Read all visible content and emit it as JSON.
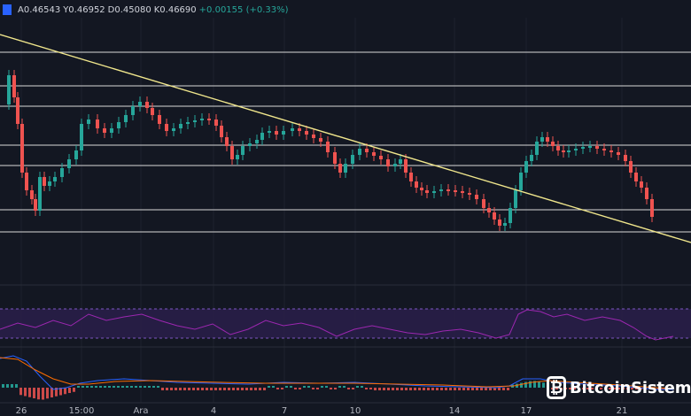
{
  "ohlc": {
    "open": "A0.46543",
    "high": "Y0.46952",
    "low": "D0.45080",
    "close": "K0.46690",
    "change": "+0.00155 (+0.33%)"
  },
  "x_labels": [
    "26",
    "15:00",
    "Ara",
    "4",
    "7",
    "10",
    "14",
    "17",
    "21"
  ],
  "watermark": "BitcoinSistemi",
  "colors": {
    "background": "#131722",
    "bull": "#26a69a",
    "bear": "#ef5350",
    "trendline": "#f0e68c",
    "rsi_line": "#9c27b0",
    "macd_line": "#2962ff",
    "signal_line": "#ff6d00"
  },
  "chart_data": {
    "type": "candlestick",
    "last_candle": {
      "open": 0.46543,
      "high": 0.46952,
      "low": 0.4508,
      "close": 0.4669,
      "change": 0.00155,
      "change_pct": 0.33
    },
    "x_ticks": [
      "26",
      "15:00",
      "Ara",
      "4",
      "7",
      "10",
      "14",
      "17",
      "21"
    ],
    "indicators": [
      "RSI",
      "MACD"
    ]
  }
}
